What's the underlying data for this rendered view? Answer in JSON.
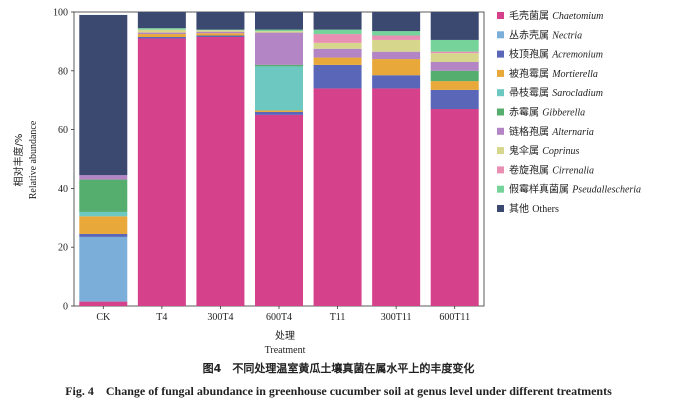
{
  "caption": {
    "cn": "图4　不同处理温室黄瓜土壤真菌在属水平上的丰度变化",
    "en": "Fig. 4　Change of fungal abundance in greenhouse cucumber soil at genus level under different treatments"
  },
  "chart_data": {
    "type": "bar",
    "stacked": true,
    "title": "",
    "xlabel_cn": "处理",
    "xlabel_en": "Treatment",
    "ylabel_cn": "相对丰度/%",
    "ylabel_en": "Relative abundance",
    "ylim": [
      0,
      100
    ],
    "yticks": [
      0,
      20,
      40,
      60,
      80,
      100
    ],
    "legend_position": "right",
    "categories": [
      "CK",
      "T4",
      "300T4",
      "600T4",
      "T11",
      "300T11",
      "600T11"
    ],
    "series": [
      {
        "name_cn": "毛壳菌属",
        "name_latin": "Chaetomium",
        "color": "#d6418b",
        "values": [
          1.5,
          91,
          91.5,
          65,
          74,
          74,
          67
        ]
      },
      {
        "name_cn": "丛赤壳属",
        "name_latin": "Nectria",
        "color": "#7bafd9",
        "values": [
          22,
          0,
          0,
          0,
          0,
          0,
          0
        ]
      },
      {
        "name_cn": "枝顶孢属",
        "name_latin": "Acremonium",
        "color": "#5a66b8",
        "values": [
          1,
          0.5,
          0.5,
          1,
          8,
          4.5,
          6.5
        ]
      },
      {
        "name_cn": "被孢霉属",
        "name_latin": "Mortierella",
        "color": "#e8a83a",
        "values": [
          6,
          1,
          0.8,
          0.5,
          2.5,
          5.5,
          3
        ]
      },
      {
        "name_cn": "帚枝霉属",
        "name_latin": "Sarocladium",
        "color": "#6cc8c0",
        "values": [
          1.5,
          0,
          0,
          15,
          0,
          0,
          0
        ]
      },
      {
        "name_cn": "赤霉属",
        "name_latin": "Gibberella",
        "color": "#55ad6e",
        "values": [
          11,
          0,
          0,
          0.5,
          0,
          0,
          3.5
        ]
      },
      {
        "name_cn": "链格孢属",
        "name_latin": "Alternaria",
        "color": "#b385c4",
        "values": [
          1.5,
          0.5,
          0.5,
          11,
          3,
          2.5,
          3
        ]
      },
      {
        "name_cn": "鬼伞属",
        "name_latin": "Coprinus",
        "color": "#d6d68c",
        "values": [
          0,
          1,
          0.5,
          0.5,
          2,
          4,
          3
        ]
      },
      {
        "name_cn": "卷旋孢属",
        "name_latin": "Cirrenalia",
        "color": "#e98fb4",
        "values": [
          0,
          0,
          0,
          0,
          3,
          1.5,
          0.5
        ]
      },
      {
        "name_cn": "假霉样真菌属",
        "name_latin": "Pseudallescheria",
        "color": "#76d49b",
        "values": [
          0,
          0.5,
          0.2,
          0.5,
          1.5,
          1.5,
          4
        ]
      },
      {
        "name_cn": "其他",
        "name_latin": "Others",
        "color": "#3b4870",
        "values": [
          54.5,
          5.5,
          6,
          6,
          6,
          6.5,
          9.5
        ]
      }
    ]
  }
}
